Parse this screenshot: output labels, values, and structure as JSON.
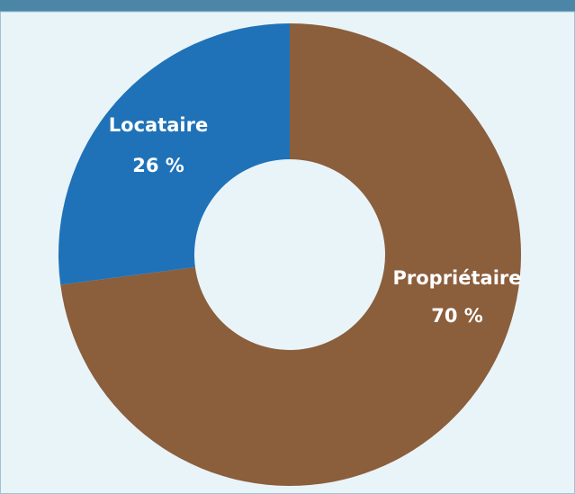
{
  "chart_data": {
    "type": "donut",
    "categories": [
      "Propriétaire",
      "Locataire"
    ],
    "values": [
      70,
      26
    ],
    "value_labels": [
      "70 %",
      "26 %"
    ],
    "colors": [
      "#8b5e3c",
      "#1f72b8"
    ]
  }
}
